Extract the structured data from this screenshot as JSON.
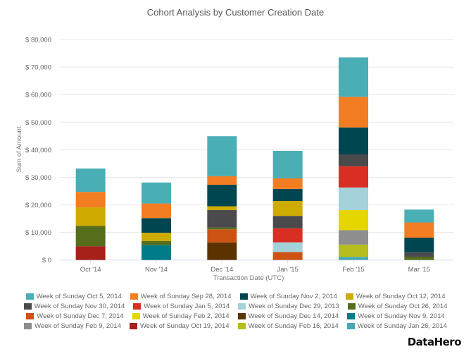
{
  "chart_data": {
    "type": "bar",
    "stacked": true,
    "title": "Cohort Analysis by Customer Creation Date",
    "xlabel": "Transaction Date (UTC)",
    "ylabel": "Sum of Amount",
    "ylim": [
      0,
      80000
    ],
    "yticks": [
      0,
      10000,
      20000,
      30000,
      40000,
      50000,
      60000,
      70000,
      80000
    ],
    "ytick_labels": [
      "$ 0",
      "$ 10,000",
      "$ 20,000",
      "$ 30,000",
      "$ 40,000",
      "$ 50,000",
      "$ 60,000",
      "$ 70,000",
      "$ 80,000"
    ],
    "grid": true,
    "legend_position": "bottom",
    "categories": [
      "Oct '14",
      "Nov '14",
      "Dec '14",
      "Jan '15",
      "Feb '15",
      "Mar '15"
    ],
    "series": [
      {
        "name": "Week of Sunday Oct 19, 2014",
        "color": "#a8201a",
        "values": [
          5000,
          0,
          0,
          0,
          0,
          0
        ]
      },
      {
        "name": "Week of Sunday Nov 9, 2014",
        "color": "#007c89",
        "values": [
          0,
          5400,
          0,
          0,
          0,
          0
        ]
      },
      {
        "name": "Week of Sunday Dec 14, 2014",
        "color": "#5c3300",
        "values": [
          0,
          0,
          6400,
          0,
          0,
          0
        ]
      },
      {
        "name": "Week of Sunday Dec 7, 2014",
        "color": "#cc5314",
        "values": [
          0,
          0,
          4700,
          2900,
          0,
          0
        ]
      },
      {
        "name": "Week of Sunday Jan 26, 2014",
        "color": "#45aab5",
        "values": [
          0,
          0,
          0,
          0,
          1100,
          0
        ]
      },
      {
        "name": "Week of Sunday Feb 16, 2014",
        "color": "#b5bd1f",
        "values": [
          0,
          0,
          0,
          0,
          4500,
          0
        ]
      },
      {
        "name": "Week of Sunday Feb 9, 2014",
        "color": "#8e8e8e",
        "values": [
          0,
          0,
          0,
          0,
          5200,
          0
        ]
      },
      {
        "name": "Week of Sunday Feb 2, 2014",
        "color": "#e5d600",
        "values": [
          0,
          0,
          0,
          0,
          7300,
          0
        ]
      },
      {
        "name": "Week of Sunday Dec 29, 2013",
        "color": "#a3d2da",
        "values": [
          0,
          0,
          0,
          3500,
          8200,
          0
        ]
      },
      {
        "name": "Week of Sunday Jan 5, 2014",
        "color": "#d92e22",
        "values": [
          0,
          0,
          0,
          5100,
          7700,
          0
        ]
      },
      {
        "name": "Week of Sunday Oct 26, 2014",
        "color": "#566e1c",
        "values": [
          7400,
          1500,
          700,
          0,
          0,
          1200
        ]
      },
      {
        "name": "Week of Sunday Nov 30, 2014",
        "color": "#4a4a4c",
        "values": [
          0,
          0,
          6300,
          4500,
          4300,
          1600
        ]
      },
      {
        "name": "Week of Sunday Oct 12, 2014",
        "color": "#ceab00",
        "values": [
          6700,
          3000,
          1400,
          5400,
          0,
          0
        ]
      },
      {
        "name": "Week of Sunday Nov 2, 2014",
        "color": "#004650",
        "values": [
          0,
          5300,
          7800,
          4400,
          9800,
          5300
        ]
      },
      {
        "name": "Week of Sunday Sep 28, 2014",
        "color": "#f27d22",
        "values": [
          5600,
          5300,
          3100,
          3800,
          11100,
          5500
        ]
      },
      {
        "name": "Week of Sunday Oct 5, 2014",
        "color": "#4aaeb5",
        "values": [
          8500,
          7600,
          14500,
          10000,
          14300,
          4700
        ]
      }
    ]
  },
  "legend": {
    "rows": [
      [
        {
          "label": "Week of Sunday Oct 5, 2014",
          "color": "#4aaeb5"
        },
        {
          "label": "Week of Sunday Sep 28, 2014",
          "color": "#f27d22"
        },
        {
          "label": "Week of Sunday Nov 2, 2014",
          "color": "#004650"
        },
        {
          "label": "Week of Sunday Oct 12, 2014",
          "color": "#ceab00"
        }
      ],
      [
        {
          "label": "Week of Sunday Nov 30, 2014",
          "color": "#4a4a4c"
        },
        {
          "label": "Week of Sunday Jan 5, 2014",
          "color": "#d92e22"
        },
        {
          "label": "Week of Sunday Dec 29, 2013",
          "color": "#a3d2da"
        },
        {
          "label": "Week of Sunday Oct 26, 2014",
          "color": "#566e1c"
        }
      ],
      [
        {
          "label": "Week of Sunday Dec 7, 2014",
          "color": "#cc5314"
        },
        {
          "label": "Week of Sunday Feb 2, 2014",
          "color": "#e5d600"
        },
        {
          "label": "Week of Sunday Dec 14, 2014",
          "color": "#5c3300"
        },
        {
          "label": "Week of Sunday Nov 9, 2014",
          "color": "#007c89"
        }
      ],
      [
        {
          "label": "Week of Sunday Feb 9, 2014",
          "color": "#8e8e8e"
        },
        {
          "label": "Week of Sunday Oct 19, 2014",
          "color": "#a8201a"
        },
        {
          "label": "Week of Sunday Feb 16, 2014",
          "color": "#b5bd1f"
        },
        {
          "label": "Week of Sunday Jan 26, 2014",
          "color": "#45aab5"
        }
      ]
    ]
  },
  "branding": {
    "logo": "DataHero"
  }
}
